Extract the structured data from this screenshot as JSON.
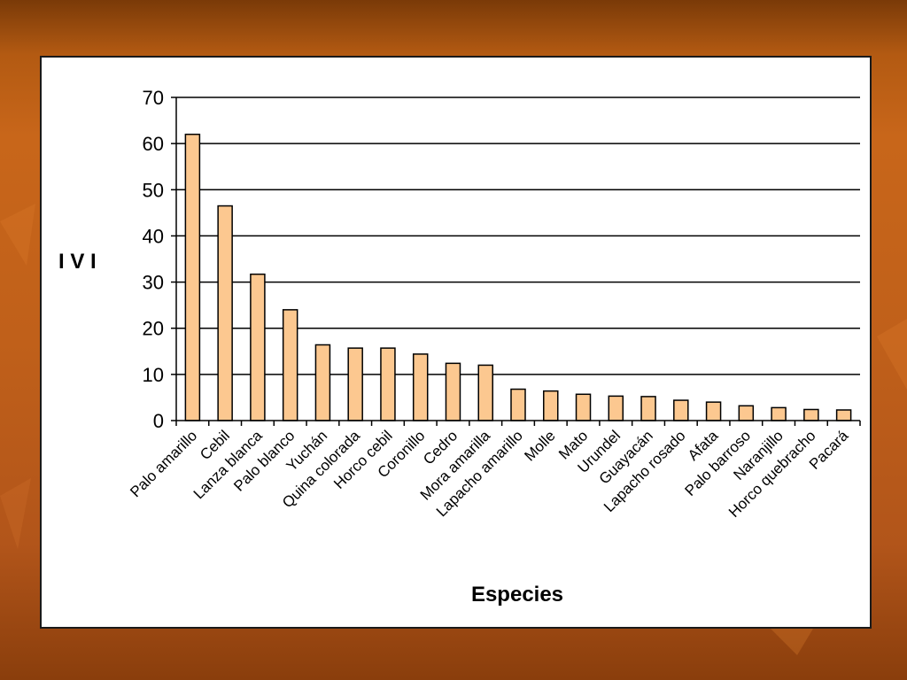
{
  "chart_data": {
    "type": "bar",
    "title": "",
    "xlabel": "Especies",
    "ylabel": "I V I",
    "ylim": [
      0,
      70
    ],
    "yticks": [
      0,
      10,
      20,
      30,
      40,
      50,
      60,
      70
    ],
    "grid": true,
    "legend": "none",
    "categories": [
      "Palo amarillo",
      "Cebil",
      "Lanza blanca",
      "Palo blanco",
      "Yuchán",
      "Quina colorada",
      "Horco cebil",
      "Coronillo",
      "Cedro",
      "Mora amarilla",
      "Lapacho amarillo",
      "Molle",
      "Mato",
      "Urundel",
      "Guayacán",
      "Lapacho rosado",
      "Afata",
      "Palo barroso",
      "Naranjillo",
      "Horco quebracho",
      "Pacará"
    ],
    "values": [
      62,
      46.5,
      31.7,
      24,
      16.4,
      15.7,
      15.7,
      14.4,
      12.4,
      12,
      6.8,
      6.4,
      5.7,
      5.3,
      5.2,
      4.4,
      4,
      3.2,
      2.8,
      2.4,
      2.3
    ],
    "colors": {
      "bar_fill": "#fcc890",
      "bar_stroke": "#000000",
      "grid": "#000000"
    }
  }
}
